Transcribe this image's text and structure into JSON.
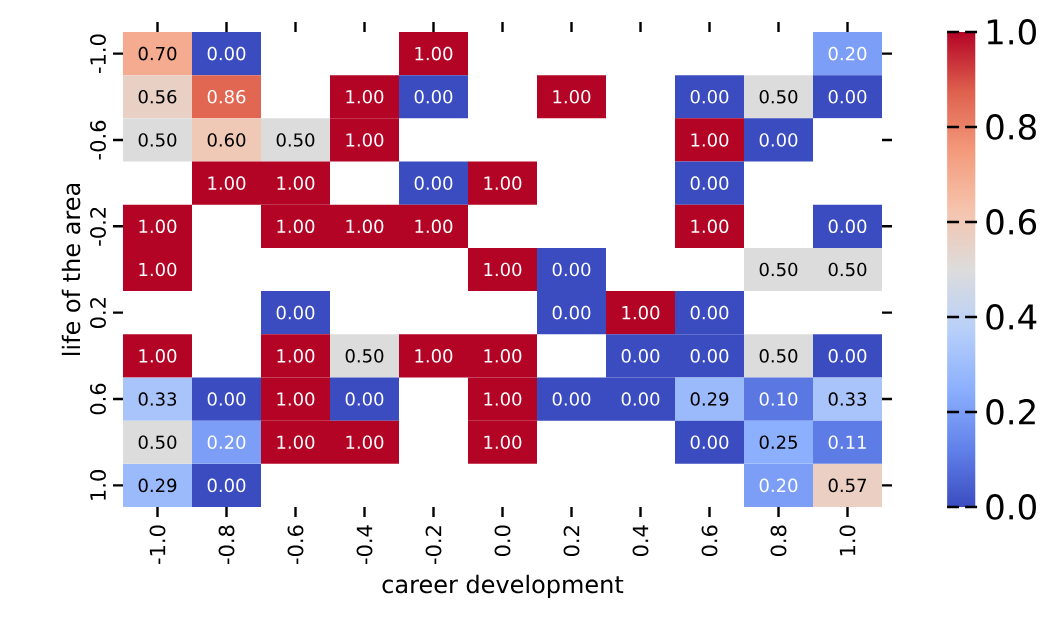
{
  "chart_data": {
    "type": "heatmap",
    "xlabel": "career development",
    "ylabel": "life of the area",
    "categories": [
      "-1.0",
      "-0.8",
      "-0.6",
      "-0.4",
      "-0.2",
      "0.0",
      "0.2",
      "0.4",
      "0.6",
      "0.8",
      "1.0"
    ],
    "y_categories": [
      "-1.0",
      null,
      "-0.6",
      null,
      "-0.2",
      null,
      "0.2",
      null,
      "0.6",
      null,
      "1.0"
    ],
    "cells": [
      [
        0.7,
        0.0,
        null,
        null,
        1.0,
        null,
        null,
        null,
        null,
        null,
        0.2
      ],
      [
        0.56,
        0.86,
        null,
        1.0,
        0.0,
        null,
        1.0,
        null,
        0.0,
        0.5,
        0.0
      ],
      [
        0.5,
        0.6,
        0.5,
        1.0,
        null,
        null,
        null,
        null,
        1.0,
        0.0,
        null
      ],
      [
        null,
        1.0,
        1.0,
        null,
        0.0,
        1.0,
        null,
        null,
        0.0,
        null,
        null
      ],
      [
        1.0,
        null,
        1.0,
        1.0,
        1.0,
        null,
        null,
        null,
        1.0,
        null,
        0.0
      ],
      [
        1.0,
        null,
        null,
        null,
        null,
        1.0,
        0.0,
        null,
        null,
        0.5,
        0.5
      ],
      [
        null,
        null,
        0.0,
        null,
        null,
        null,
        0.0,
        1.0,
        0.0,
        null,
        null
      ],
      [
        1.0,
        null,
        1.0,
        0.5,
        1.0,
        1.0,
        null,
        0.0,
        0.0,
        0.5,
        0.0
      ],
      [
        0.33,
        0.0,
        1.0,
        0.0,
        null,
        1.0,
        0.0,
        0.0,
        0.29,
        0.1,
        0.33
      ],
      [
        0.5,
        0.2,
        1.0,
        1.0,
        null,
        1.0,
        null,
        null,
        0.0,
        0.25,
        0.11
      ],
      [
        0.29,
        0.0,
        null,
        null,
        null,
        null,
        null,
        null,
        null,
        0.2,
        0.57
      ]
    ],
    "cell_labels": [
      [
        "0.70",
        "0.00",
        null,
        null,
        "1.00",
        null,
        null,
        null,
        null,
        null,
        "0.20"
      ],
      [
        "0.56",
        "0.86",
        null,
        "1.00",
        "0.00",
        null,
        "1.00",
        null,
        "0.00",
        "0.50",
        "0.00"
      ],
      [
        "0.50",
        "0.60",
        "0.50",
        "1.00",
        null,
        null,
        null,
        null,
        "1.00",
        "0.00",
        null
      ],
      [
        null,
        "1.00",
        "1.00",
        null,
        "0.00",
        "1.00",
        null,
        null,
        "0.00",
        null,
        null
      ],
      [
        "1.00",
        null,
        "1.00",
        "1.00",
        "1.00",
        null,
        null,
        null,
        "1.00",
        null,
        "0.00"
      ],
      [
        "1.00",
        null,
        null,
        null,
        null,
        "1.00",
        "0.00",
        null,
        null,
        "0.50",
        "0.50"
      ],
      [
        null,
        null,
        "0.00",
        null,
        null,
        null,
        "0.00",
        "1.00",
        "0.00",
        null,
        null
      ],
      [
        "1.00",
        null,
        "1.00",
        "0.50",
        "1.00",
        "1.00",
        null,
        "0.00",
        "0.00",
        "0.50",
        "0.00"
      ],
      [
        "0.33",
        "0.00",
        "1.00",
        "0.00",
        null,
        "1.00",
        "0.00",
        "0.00",
        "0.29",
        "0.10",
        "0.33"
      ],
      [
        "0.50",
        "0.20",
        "1.00",
        "1.00",
        null,
        "1.00",
        null,
        null,
        "0.00",
        "0.25",
        "0.11"
      ],
      [
        "0.29",
        "0.00",
        null,
        null,
        null,
        null,
        null,
        null,
        null,
        "0.20",
        "0.57"
      ]
    ],
    "clim": [
      0,
      1
    ],
    "cticks": [
      {
        "value": 0,
        "label": "0.0"
      },
      {
        "value": 0.2,
        "label": "0.2"
      },
      {
        "value": 0.4,
        "label": "0.4"
      },
      {
        "value": 0.6,
        "label": "0.6"
      },
      {
        "value": 0.8,
        "label": "0.8"
      },
      {
        "value": 1.0,
        "label": "1.0"
      }
    ]
  }
}
